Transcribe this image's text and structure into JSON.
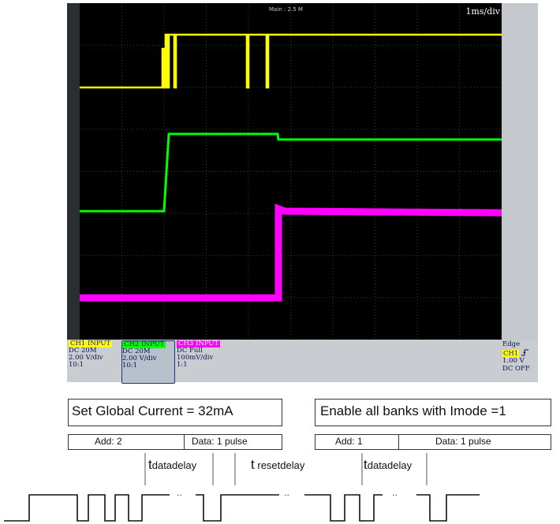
{
  "scope": {
    "header": "Main : 2.5 M",
    "timebase": "1ms/div",
    "ch1": {
      "title": "CH1 INPUT",
      "coupling": "DC 20M",
      "scale": "2.00 V/div",
      "probe": "10:1",
      "color": "#ffff00"
    },
    "ch2": {
      "title": "CH2 INPUT",
      "coupling": "DC 20M",
      "scale": "2.00 V/div",
      "probe": "10:1",
      "color": "#00ff00"
    },
    "ch3": {
      "title": "CH3 INPUT",
      "coupling": "DC Full",
      "scale": "100mV/div",
      "probe": "1:1",
      "color": "#ff00ff"
    },
    "trigger": {
      "mode": "Edge",
      "source": "CH1",
      "slope_icon": "rising-edge-icon",
      "level": "1.00 V",
      "coupling": "DC OFF"
    }
  },
  "diagram": {
    "box1": {
      "title": "Set Global Current = 32mA",
      "add": "Add: 2",
      "data": "Data: 1 pulse"
    },
    "box2": {
      "title": "Enable all banks with Imode =1",
      "add": "Add: 1",
      "data": "Data: 1 pulse"
    },
    "timing": [
      {
        "t": "t",
        "sub": "datadelay"
      },
      {
        "t": "t",
        "sub": "resetdelay"
      },
      {
        "t": "t",
        "sub": "datadelay"
      }
    ],
    "ellipsis": "··"
  }
}
